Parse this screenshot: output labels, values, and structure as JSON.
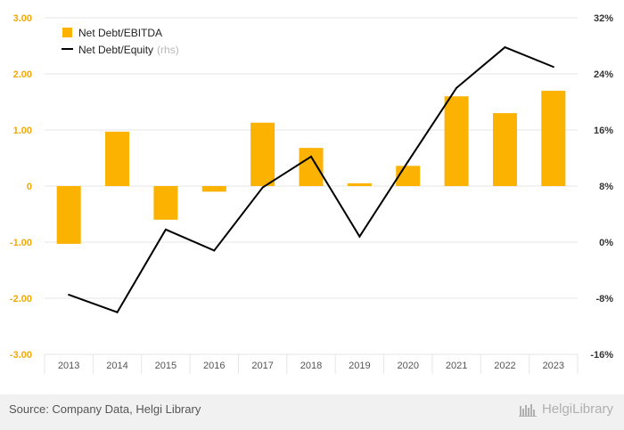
{
  "chart_data": {
    "type": "bar+line",
    "categories": [
      "2013",
      "2014",
      "2015",
      "2016",
      "2017",
      "2018",
      "2019",
      "2020",
      "2021",
      "2022",
      "2023"
    ],
    "series": [
      {
        "name": "Net Debt/EBITDA",
        "type": "bar",
        "axis": "left",
        "color": "#FBB200",
        "values": [
          -1.03,
          0.97,
          -0.6,
          -0.1,
          1.13,
          0.68,
          0.05,
          0.36,
          1.6,
          1.3,
          1.7
        ]
      },
      {
        "name": "Net Debt/Equity",
        "type": "line",
        "axis": "right",
        "color": "#000000",
        "values": [
          -7.5,
          -10.0,
          1.8,
          -1.2,
          7.8,
          12.2,
          0.8,
          11.5,
          22.0,
          27.8,
          25.0
        ]
      }
    ],
    "y_left": {
      "min": -3.0,
      "max": 3.0,
      "ticks": [
        "3.00",
        "2.00",
        "1.00",
        "0",
        "-1.00",
        "-2.00",
        "-3.00"
      ],
      "color": "#F2A900"
    },
    "y_right": {
      "min": -16,
      "max": 32,
      "ticks": [
        "32%",
        "24%",
        "16%",
        "8%",
        "0%",
        "-8%",
        "-16%"
      ]
    },
    "legend": {
      "position": "top-left",
      "items": [
        {
          "label": "Net Debt/EBITDA",
          "note": ""
        },
        {
          "label": "Net Debt/Equity",
          "note": "(rhs)"
        }
      ]
    },
    "grid": true
  },
  "footer": {
    "source": "Source: Company Data, Helgi Library",
    "brand": "HelgiLibrary"
  }
}
